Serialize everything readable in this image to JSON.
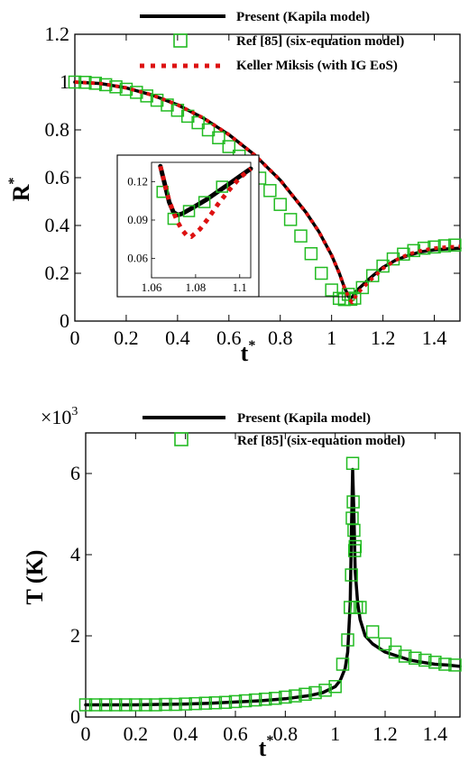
{
  "chart_data": [
    {
      "type": "line",
      "xlabel": "t",
      "xlabel_sup": "*",
      "ylabel": "R",
      "ylabel_sup": "*",
      "xlim": [
        0,
        1.5
      ],
      "ylim": [
        0,
        1.2
      ],
      "xticks": [
        "0",
        "0.2",
        "0.4",
        "0.6",
        "0.8",
        "1",
        "1.2",
        "1.4"
      ],
      "yticks": [
        "0",
        "0.2",
        "0.4",
        "0.6",
        "0.8",
        "1",
        "1.2"
      ],
      "legend": "top-right",
      "grid": false,
      "series": [
        {
          "name": "Present (Kapila model)",
          "style": "solid-line",
          "color": "#000000",
          "x": [
            0,
            0.1,
            0.2,
            0.3,
            0.4,
            0.5,
            0.6,
            0.7,
            0.8,
            0.9,
            0.95,
            1.0,
            1.03,
            1.05,
            1.07,
            1.08,
            1.1,
            1.15,
            1.2,
            1.25,
            1.3,
            1.35,
            1.4,
            1.45,
            1.5
          ],
          "values": [
            1.0,
            0.994,
            0.976,
            0.946,
            0.905,
            0.85,
            0.78,
            0.695,
            0.59,
            0.455,
            0.375,
            0.275,
            0.2,
            0.14,
            0.095,
            0.1,
            0.13,
            0.18,
            0.225,
            0.255,
            0.275,
            0.29,
            0.298,
            0.302,
            0.305
          ]
        },
        {
          "name": "Ref [85] (six-equation model)",
          "style": "open-square",
          "color": "#22bb22",
          "x": [
            0,
            0.04,
            0.08,
            0.12,
            0.16,
            0.2,
            0.24,
            0.28,
            0.32,
            0.36,
            0.4,
            0.44,
            0.48,
            0.52,
            0.56,
            0.6,
            0.64,
            0.68,
            0.72,
            0.76,
            0.8,
            0.84,
            0.88,
            0.92,
            0.96,
            1.0,
            1.03,
            1.05,
            1.065,
            1.075,
            1.09,
            1.12,
            1.16,
            1.2,
            1.24,
            1.28,
            1.32,
            1.36,
            1.4,
            1.44,
            1.48
          ],
          "values": [
            1.0,
            0.999,
            0.995,
            0.989,
            0.98,
            0.97,
            0.957,
            0.942,
            0.924,
            0.904,
            0.882,
            0.857,
            0.83,
            0.8,
            0.767,
            0.73,
            0.69,
            0.646,
            0.598,
            0.546,
            0.488,
            0.425,
            0.356,
            0.282,
            0.2,
            0.13,
            0.095,
            0.09,
            0.112,
            0.091,
            0.096,
            0.14,
            0.19,
            0.23,
            0.26,
            0.28,
            0.295,
            0.305,
            0.31,
            0.315,
            0.318
          ]
        },
        {
          "name": "Keller Miksis (with IG EoS)",
          "style": "dotted-line",
          "color": "#dd1111",
          "x": [
            0,
            0.1,
            0.2,
            0.3,
            0.4,
            0.5,
            0.6,
            0.7,
            0.8,
            0.9,
            0.95,
            1.0,
            1.03,
            1.05,
            1.07,
            1.08,
            1.1,
            1.15,
            1.2,
            1.25,
            1.3,
            1.35,
            1.4,
            1.45,
            1.5
          ],
          "values": [
            1.0,
            0.994,
            0.976,
            0.946,
            0.905,
            0.85,
            0.78,
            0.695,
            0.59,
            0.455,
            0.375,
            0.275,
            0.2,
            0.14,
            0.09,
            0.078,
            0.115,
            0.17,
            0.22,
            0.255,
            0.28,
            0.295,
            0.305,
            0.31,
            0.312
          ]
        }
      ],
      "inset": {
        "xlim": [
          1.06,
          1.105
        ],
        "ylim": [
          0.045,
          0.135
        ],
        "xticks": [
          "1.06",
          "1.08",
          "1.1"
        ],
        "yticks": [
          "0.06",
          "0.09",
          "0.12"
        ],
        "series": [
          {
            "name": "Present (Kapila model)",
            "x": [
              1.064,
              1.066,
              1.068,
              1.07,
              1.072,
              1.074,
              1.076,
              1.08,
              1.085,
              1.09,
              1.095,
              1.1,
              1.105
            ],
            "values": [
              0.132,
              0.118,
              0.104,
              0.096,
              0.094,
              0.095,
              0.097,
              0.101,
              0.106,
              0.112,
              0.118,
              0.124,
              0.13
            ]
          },
          {
            "name": "Ref [85] (six-equation model)",
            "x": [
              1.065,
              1.07,
              1.077,
              1.084,
              1.092
            ],
            "values": [
              0.112,
              0.091,
              0.097,
              0.104,
              0.116
            ]
          },
          {
            "name": "Keller Miksis (with IG EoS)",
            "x": [
              1.064,
              1.066,
              1.068,
              1.07,
              1.072,
              1.074,
              1.076,
              1.078,
              1.082,
              1.086,
              1.09,
              1.095,
              1.1,
              1.105
            ],
            "values": [
              0.132,
              0.118,
              0.105,
              0.096,
              0.088,
              0.082,
              0.078,
              0.077,
              0.083,
              0.092,
              0.102,
              0.113,
              0.123,
              0.13
            ]
          }
        ]
      }
    },
    {
      "type": "line",
      "xlabel": "t",
      "xlabel_sup": "*",
      "ylabel": "T (K)",
      "multiplier": "×10",
      "multiplier_exp": "3",
      "xlim": [
        0,
        1.5
      ],
      "ylim": [
        0,
        7
      ],
      "xticks": [
        "0",
        "0.2",
        "0.4",
        "0.6",
        "0.8",
        "1",
        "1.2",
        "1.4"
      ],
      "yticks": [
        "0",
        "2",
        "4",
        "6"
      ],
      "legend": "top-right",
      "grid": false,
      "series": [
        {
          "name": "Present (Kapila model)",
          "style": "solid-line",
          "color": "#000000",
          "x": [
            0,
            0.1,
            0.2,
            0.3,
            0.4,
            0.5,
            0.6,
            0.7,
            0.8,
            0.9,
            0.95,
            1.0,
            1.02,
            1.04,
            1.05,
            1.06,
            1.065,
            1.07,
            1.075,
            1.08,
            1.09,
            1.1,
            1.12,
            1.15,
            1.2,
            1.25,
            1.3,
            1.35,
            1.4,
            1.45,
            1.5
          ],
          "values": [
            0.3,
            0.3,
            0.3,
            0.31,
            0.32,
            0.34,
            0.37,
            0.4,
            0.45,
            0.53,
            0.6,
            0.75,
            0.9,
            1.2,
            1.6,
            2.8,
            4.5,
            6.1,
            5.0,
            3.6,
            2.8,
            2.4,
            2.0,
            1.8,
            1.6,
            1.5,
            1.4,
            1.35,
            1.3,
            1.28,
            1.25
          ]
        },
        {
          "name": "Ref [85] (six-equation model)",
          "style": "open-square",
          "color": "#22bb22",
          "x": [
            0,
            0.04,
            0.08,
            0.12,
            0.16,
            0.2,
            0.24,
            0.28,
            0.32,
            0.36,
            0.4,
            0.44,
            0.48,
            0.52,
            0.56,
            0.6,
            0.64,
            0.68,
            0.72,
            0.76,
            0.8,
            0.84,
            0.88,
            0.92,
            0.96,
            1.0,
            1.03,
            1.05,
            1.06,
            1.065,
            1.068,
            1.07,
            1.072,
            1.075,
            1.078,
            1.08,
            1.085,
            1.1,
            1.15,
            1.2,
            1.24,
            1.28,
            1.32,
            1.36,
            1.4,
            1.44,
            1.48
          ],
          "values": [
            0.3,
            0.3,
            0.3,
            0.3,
            0.3,
            0.3,
            0.3,
            0.3,
            0.31,
            0.31,
            0.32,
            0.33,
            0.34,
            0.35,
            0.36,
            0.38,
            0.4,
            0.42,
            0.44,
            0.46,
            0.49,
            0.52,
            0.56,
            0.6,
            0.66,
            0.75,
            1.3,
            1.9,
            2.7,
            3.5,
            4.9,
            6.25,
            5.3,
            4.6,
            4.1,
            4.2,
            2.7,
            2.7,
            2.1,
            1.8,
            1.6,
            1.5,
            1.45,
            1.4,
            1.35,
            1.3,
            1.28
          ]
        }
      ]
    }
  ]
}
